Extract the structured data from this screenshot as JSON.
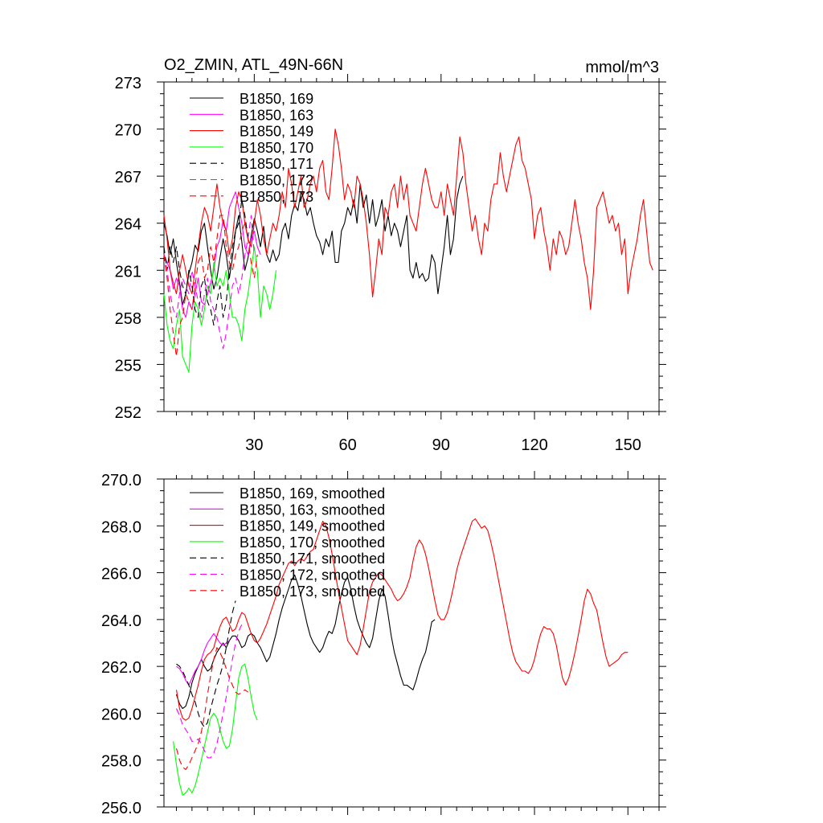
{
  "chart_data": [
    {
      "type": "line",
      "title": "O2_ZMIN, ATL_49N-66N",
      "units": "mmol/m^3",
      "xlabel": "",
      "ylabel": "",
      "xlim": [
        1,
        160
      ],
      "ylim": [
        252,
        273
      ],
      "xticks": [
        30,
        60,
        90,
        120,
        150
      ],
      "xtick_labels": [
        "30",
        "60",
        "90",
        "120",
        "150"
      ],
      "yticks": [
        252,
        255,
        258,
        261,
        264,
        267,
        270,
        273
      ],
      "ytick_labels": [
        "252",
        "255",
        "258",
        "261",
        "264",
        "267",
        "270",
        "273"
      ],
      "legend_position": "top-left",
      "grid": false,
      "series": [
        {
          "name": "B1850, 169",
          "color": "#000000",
          "dashed": false,
          "x_start": 1,
          "values": [
            264.0,
            263.2,
            262.0,
            263.0,
            261.5,
            260.2,
            258.8,
            259.5,
            260.8,
            261.5,
            262.6,
            262.2,
            263.5,
            264.0,
            262.5,
            261.0,
            259.8,
            260.5,
            261.8,
            263.0,
            262.0,
            260.5,
            261.8,
            263.5,
            264.5,
            262.8,
            261.0,
            261.8,
            263.2,
            264.3,
            263.5,
            262.5,
            263.8,
            262.0,
            261.5,
            262.3,
            261.6,
            262.0,
            263.5,
            264.0,
            263.0,
            264.5,
            265.2,
            264.8,
            266.0,
            265.5,
            264.5,
            265.0,
            264.0,
            263.2,
            262.8,
            262.0,
            263.0,
            262.5,
            263.5,
            261.5,
            261.5,
            263.5,
            264.0,
            265.0,
            264.5,
            265.5,
            264.0,
            266.5,
            265.0,
            265.8,
            264.0,
            265.5,
            263.8,
            264.5,
            265.5,
            263.5,
            264.5,
            263.2,
            264.0,
            263.5,
            262.5,
            263.5,
            264.5,
            261.0,
            260.5,
            261.5,
            260.5,
            260.8,
            260.3,
            260.5,
            262.0,
            261.5,
            259.5,
            261.0,
            262.5,
            264.5,
            262.0,
            263.0,
            265.5,
            266.5,
            267.0
          ]
        },
        {
          "name": "B1850, 163",
          "color": "#ff00ff",
          "dashed": false,
          "x_start": 1,
          "values": [
            262.0,
            261.5,
            261.0,
            259.8,
            260.5,
            260.0,
            258.5,
            258.0,
            259.0,
            258.5,
            259.5,
            260.5,
            259.0,
            258.8,
            259.5,
            260.2,
            261.0,
            262.5,
            263.0,
            264.2,
            263.5,
            265.0,
            265.5,
            266.0,
            265.0,
            264.0,
            262.5,
            262.0,
            263.0,
            263.5,
            262.5,
            262.0
          ]
        },
        {
          "name": "B1850, 149",
          "color": "#ff0000",
          "dashed": false,
          "x_start": 1,
          "values": [
            264.5,
            263.0,
            261.0,
            260.2,
            259.5,
            261.0,
            262.0,
            261.0,
            260.0,
            259.5,
            261.0,
            262.5,
            264.0,
            265.0,
            264.5,
            263.5,
            265.0,
            266.5,
            265.0,
            264.0,
            263.5,
            262.0,
            263.0,
            265.0,
            266.0,
            265.5,
            264.0,
            263.0,
            262.5,
            264.0,
            265.5,
            264.5,
            263.0,
            262.0,
            263.0,
            264.0,
            263.5,
            264.5,
            266.0,
            265.0,
            267.5,
            266.5,
            265.0,
            266.0,
            267.0,
            265.0,
            265.5,
            266.5,
            267.0,
            266.0,
            267.5,
            268.0,
            266.0,
            265.5,
            267.5,
            270.0,
            269.0,
            267.5,
            265.5,
            266.5,
            266.0,
            265.0,
            267.0,
            266.5,
            265.5,
            264.0,
            262.0,
            259.3,
            261.0,
            263.0,
            262.0,
            265.0,
            264.5,
            266.0,
            266.5,
            265.0,
            267.0,
            265.5,
            266.5,
            264.5,
            264.0,
            263.5,
            265.0,
            266.5,
            267.5,
            266.5,
            265.5,
            265.0,
            265.0,
            266.0,
            264.5,
            266.5,
            265.5,
            264.5,
            267.0,
            269.5,
            268.5,
            266.5,
            265.0,
            263.5,
            264.5,
            263.0,
            262.0,
            264.0,
            263.5,
            265.5,
            266.5,
            266.5,
            268.5,
            267.0,
            266.0,
            267.0,
            268.0,
            269.0,
            269.5,
            268.0,
            267.5,
            266.5,
            265.5,
            263.0,
            264.5,
            265.0,
            263.5,
            262.5,
            261.0,
            263.0,
            262.0,
            263.5,
            263.0,
            262.0,
            262.5,
            264.0,
            265.5,
            264.0,
            263.0,
            261.5,
            260.5,
            258.5,
            261.0,
            265.0,
            265.5,
            266.0,
            265.0,
            264.0,
            264.5,
            263.5,
            264.0,
            262.0,
            263.0,
            259.5,
            261.0,
            262.0,
            263.0,
            264.5,
            265.5,
            263.5,
            261.5,
            261.0
          ]
        },
        {
          "name": "B1850, 170",
          "color": "#00ff00",
          "dashed": false,
          "x_start": 1,
          "values": [
            259.5,
            257.5,
            256.5,
            256.0,
            257.5,
            258.5,
            255.5,
            255.0,
            254.5,
            257.5,
            259.0,
            258.5,
            257.5,
            258.5,
            260.0,
            259.5,
            261.5,
            260.0,
            260.5,
            260.0,
            261.0,
            259.5,
            258.0,
            258.0,
            257.5,
            256.5,
            258.5,
            259.5,
            261.0,
            262.5,
            261.0,
            258.0,
            260.0,
            259.5,
            258.5,
            259.5,
            261.0
          ]
        },
        {
          "name": "B1850, 171",
          "color": "#000000",
          "dashed": true,
          "x_start": 1,
          "values": [
            262.5,
            261.0,
            262.5,
            261.5,
            262.5,
            261.0,
            260.0,
            259.5,
            261.0,
            260.0,
            258.5,
            258.0,
            260.0,
            260.5,
            259.0,
            258.5,
            257.5,
            259.0,
            260.0,
            258.0,
            259.0,
            261.0,
            262.5,
            263.5,
            264.0,
            265.5,
            264.5,
            263.0
          ]
        },
        {
          "name": "B1850, 172",
          "color": "#ff00ff",
          "dashed": true,
          "x_start": 1,
          "values": [
            262.0,
            261.0,
            259.5,
            258.5,
            258.0,
            259.5,
            260.5,
            260.0,
            259.5,
            261.0,
            260.0,
            259.0,
            258.0,
            259.5,
            260.5,
            259.0,
            258.5,
            258.0,
            257.0,
            256.0,
            257.0,
            258.5,
            260.0,
            260.5,
            259.5,
            260.5,
            262.0,
            263.0,
            264.5,
            262.0
          ]
        },
        {
          "name": "B1850, 173",
          "color": "#ff0000",
          "dashed": true,
          "x_start": 1,
          "values": [
            262.0,
            260.5,
            258.5,
            257.0,
            255.5,
            257.5,
            258.0,
            259.5,
            259.0,
            258.5,
            260.0,
            261.5,
            262.0,
            260.5,
            261.0,
            262.5,
            261.5,
            263.0,
            264.5,
            264.5,
            262.5,
            261.5,
            261.0,
            262.0,
            262.5,
            263.5,
            264.0,
            263.0,
            261.5,
            260.5,
            262.0
          ]
        }
      ]
    },
    {
      "type": "line",
      "title": "",
      "xlabel": "",
      "ylabel": "",
      "xlim": [
        1,
        160
      ],
      "ylim": [
        256,
        270
      ],
      "xticks": [
        30,
        60,
        90,
        120,
        150
      ],
      "xtick_labels": [],
      "yticks": [
        256,
        258,
        260,
        262,
        264,
        266,
        268,
        270
      ],
      "ytick_labels": [
        "256.0",
        "258.0",
        "260.0",
        "262.0",
        "264.0",
        "266.0",
        "268.0",
        "270.0"
      ],
      "legend_position": "top-left",
      "grid": false,
      "series": [
        {
          "name": "B1850, 169, smoothed",
          "color": "#000000",
          "dashed": false,
          "x_start": 5,
          "values": [
            260.8,
            260.4,
            260.2,
            260.3,
            260.7,
            261.3,
            261.7,
            262.0,
            262.3,
            262.0,
            261.8,
            261.9,
            262.3,
            262.6,
            262.8,
            263.0,
            262.8,
            263.1,
            263.3,
            263.3,
            263.1,
            262.8,
            262.9,
            263.3,
            263.4,
            263.3,
            263.0,
            262.8,
            262.5,
            262.2,
            262.4,
            262.9,
            263.4,
            264.0,
            264.5,
            264.9,
            265.3,
            265.7,
            265.9,
            265.5,
            265.0,
            264.4,
            263.8,
            263.3,
            263.0,
            262.8,
            262.6,
            262.8,
            263.2,
            263.5,
            263.4,
            263.8,
            264.5,
            265.1,
            265.6,
            265.8,
            265.3,
            264.6,
            264.0,
            263.6,
            263.3,
            263.0,
            262.8,
            263.2,
            264.0,
            264.8,
            265.3,
            265.0,
            264.2,
            263.3,
            262.6,
            262.1,
            261.6,
            261.2,
            261.2,
            261.1,
            261.0,
            261.4,
            261.9,
            262.3,
            262.6,
            263.2,
            263.9,
            264.0
          ]
        },
        {
          "name": "B1850, 163, smoothed",
          "color": "#ff00ff",
          "dashed": false,
          "x_start": 5,
          "values": [
            262.0,
            261.9,
            261.7,
            261.4,
            261.2,
            261.5,
            261.8,
            262.0,
            262.3,
            262.7,
            263.0,
            263.2,
            263.4,
            263.2,
            263.0,
            262.9,
            263.0,
            263.1
          ]
        },
        {
          "name": "B1850, 149, smoothed",
          "color": "#ff0000",
          "dashed": false,
          "x_start": 5,
          "values": [
            261.0,
            260.2,
            259.8,
            259.7,
            259.8,
            260.2,
            260.7,
            261.2,
            261.8,
            262.3,
            262.5,
            262.6,
            262.8,
            263.3,
            263.7,
            264.0,
            264.1,
            263.8,
            263.5,
            263.6,
            264.0,
            264.3,
            264.2,
            263.8,
            263.4,
            263.1,
            263.0,
            263.2,
            263.5,
            263.8,
            264.2,
            264.6,
            265.0,
            265.5,
            265.8,
            266.1,
            266.4,
            266.5,
            266.3,
            266.5,
            266.6,
            266.5,
            266.7,
            266.9,
            267.0,
            267.4,
            267.8,
            268.2,
            268.0,
            267.5,
            266.8,
            266.0,
            265.2,
            264.5,
            263.8,
            263.1,
            262.9,
            262.7,
            262.5,
            262.9,
            263.6,
            264.4,
            265.2,
            265.6,
            265.8,
            266.0,
            265.9,
            265.7,
            265.5,
            265.3,
            265.0,
            264.8,
            264.9,
            265.1,
            265.4,
            265.8,
            266.5,
            267.1,
            267.4,
            267.2,
            266.8,
            266.2,
            265.5,
            264.8,
            264.2,
            264.0,
            264.0,
            264.3,
            264.8,
            265.4,
            266.1,
            266.6,
            267.0,
            267.4,
            267.8,
            268.2,
            268.3,
            268.1,
            267.9,
            268.0,
            267.8,
            267.3,
            266.7,
            266.0,
            265.3,
            264.6,
            263.9,
            263.2,
            262.6,
            262.2,
            262.0,
            261.8,
            261.8,
            261.7,
            261.9,
            262.3,
            262.9,
            263.4,
            263.7,
            263.6,
            263.6,
            263.4,
            262.9,
            262.2,
            261.5,
            261.2,
            261.5,
            262.0,
            262.6,
            263.3,
            264.0,
            264.8,
            265.3,
            265.1,
            264.7,
            264.4,
            263.7,
            263.0,
            262.4,
            262.0,
            262.1,
            262.2,
            262.3,
            262.5,
            262.6,
            262.6
          ]
        },
        {
          "name": "B1850, 170, smoothed",
          "color": "#00ff00",
          "dashed": false,
          "x_start": 4,
          "values": [
            258.8,
            257.8,
            257.0,
            256.5,
            256.6,
            256.8,
            256.6,
            256.9,
            257.4,
            258.0,
            258.6,
            259.2,
            259.8,
            260.0,
            259.8,
            259.3,
            258.8,
            258.5,
            258.6,
            259.3,
            260.4,
            261.5,
            262.0,
            262.1,
            261.5,
            260.7,
            260.0,
            259.7
          ]
        },
        {
          "name": "B1850, 171, smoothed",
          "color": "#000000",
          "dashed": true,
          "x_start": 5,
          "values": [
            262.1,
            262.0,
            261.8,
            261.5,
            261.2,
            260.8,
            260.5,
            260.0,
            259.6,
            259.4,
            259.6,
            260.2,
            260.7,
            261.2,
            261.6,
            262.1,
            262.8,
            263.6,
            264.3,
            264.8
          ]
        },
        {
          "name": "B1850, 172, smoothed",
          "color": "#ff00ff",
          "dashed": true,
          "x_start": 5,
          "values": [
            260.2,
            259.9,
            259.5,
            259.3,
            259.1,
            258.8,
            258.8,
            258.9,
            258.7,
            258.4,
            258.1,
            258.1,
            258.3,
            258.7,
            259.3,
            260.0,
            260.7,
            261.5,
            262.3,
            263.0,
            263.5,
            263.8
          ]
        },
        {
          "name": "B1850, 173, smoothed",
          "color": "#ff0000",
          "dashed": true,
          "x_start": 5,
          "values": [
            258.5,
            258.0,
            257.7,
            257.6,
            257.8,
            258.1,
            258.4,
            258.7,
            259.2,
            259.9,
            260.8,
            261.6,
            262.3,
            262.8,
            262.6,
            262.3,
            261.9,
            261.5,
            261.2,
            260.9,
            260.8,
            260.9,
            261.0,
            260.9
          ]
        }
      ]
    }
  ]
}
